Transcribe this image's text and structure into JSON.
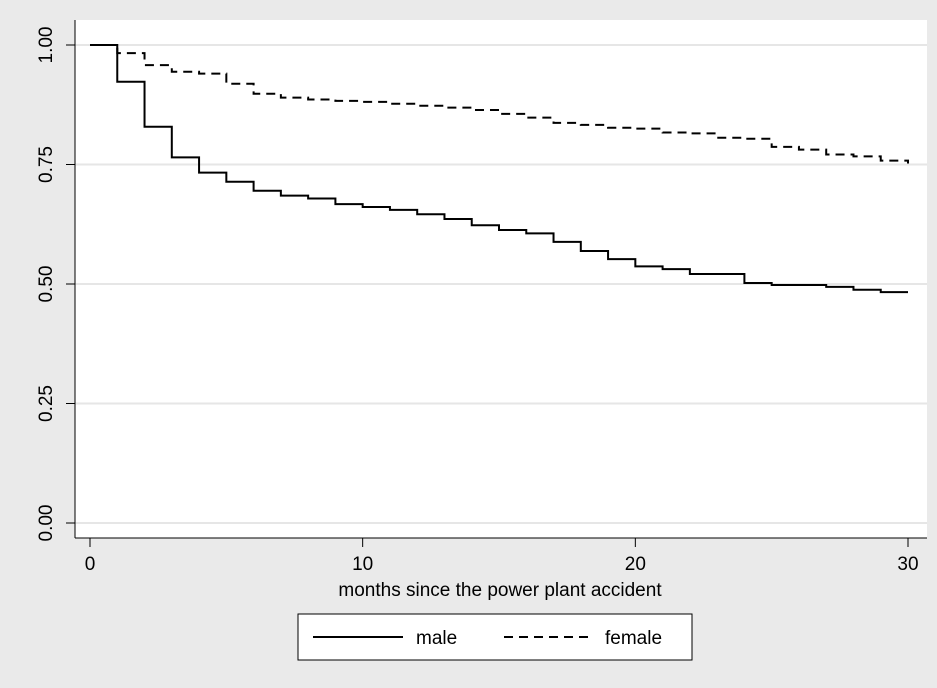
{
  "chart_data": {
    "type": "line",
    "title": "",
    "xlabel": "months since the power plant accident",
    "ylabel": "",
    "xlim": [
      0,
      30
    ],
    "ylim": [
      0,
      1
    ],
    "x_ticks": [
      0,
      10,
      20,
      30
    ],
    "y_ticks": [
      0.0,
      0.25,
      0.5,
      0.75,
      1.0
    ],
    "x_tick_labels": [
      "0",
      "10",
      "20",
      "30"
    ],
    "y_tick_labels": [
      "0.00",
      "0.25",
      "0.50",
      "0.75",
      "1.00"
    ],
    "grid": true,
    "legend_position": "bottom",
    "line_style": "step",
    "series": [
      {
        "name": "male",
        "dash": "solid",
        "x": [
          0,
          1,
          2,
          3,
          4,
          5,
          6,
          7,
          8,
          9,
          10,
          11,
          12,
          13,
          14,
          15,
          16,
          17,
          18,
          19,
          20,
          21,
          22,
          23,
          24,
          25,
          26,
          27,
          28,
          29,
          30
        ],
        "y": [
          1.0,
          0.923,
          0.829,
          0.765,
          0.733,
          0.714,
          0.695,
          0.685,
          0.679,
          0.667,
          0.661,
          0.655,
          0.646,
          0.636,
          0.623,
          0.613,
          0.606,
          0.588,
          0.569,
          0.552,
          0.537,
          0.531,
          0.521,
          0.521,
          0.502,
          0.498,
          0.498,
          0.494,
          0.488,
          0.483,
          0.483
        ]
      },
      {
        "name": "female",
        "dash": "dashed",
        "x": [
          0,
          1,
          2,
          3,
          4,
          5,
          6,
          7,
          8,
          9,
          10,
          11,
          12,
          13,
          14,
          15,
          16,
          17,
          18,
          19,
          20,
          21,
          22,
          23,
          24,
          25,
          26,
          27,
          28,
          29,
          30
        ],
        "y": [
          1.0,
          0.983,
          0.958,
          0.944,
          0.94,
          0.919,
          0.898,
          0.89,
          0.886,
          0.883,
          0.881,
          0.877,
          0.873,
          0.869,
          0.864,
          0.856,
          0.848,
          0.837,
          0.833,
          0.827,
          0.825,
          0.817,
          0.815,
          0.806,
          0.804,
          0.787,
          0.781,
          0.771,
          0.767,
          0.758,
          0.752
        ]
      }
    ]
  }
}
